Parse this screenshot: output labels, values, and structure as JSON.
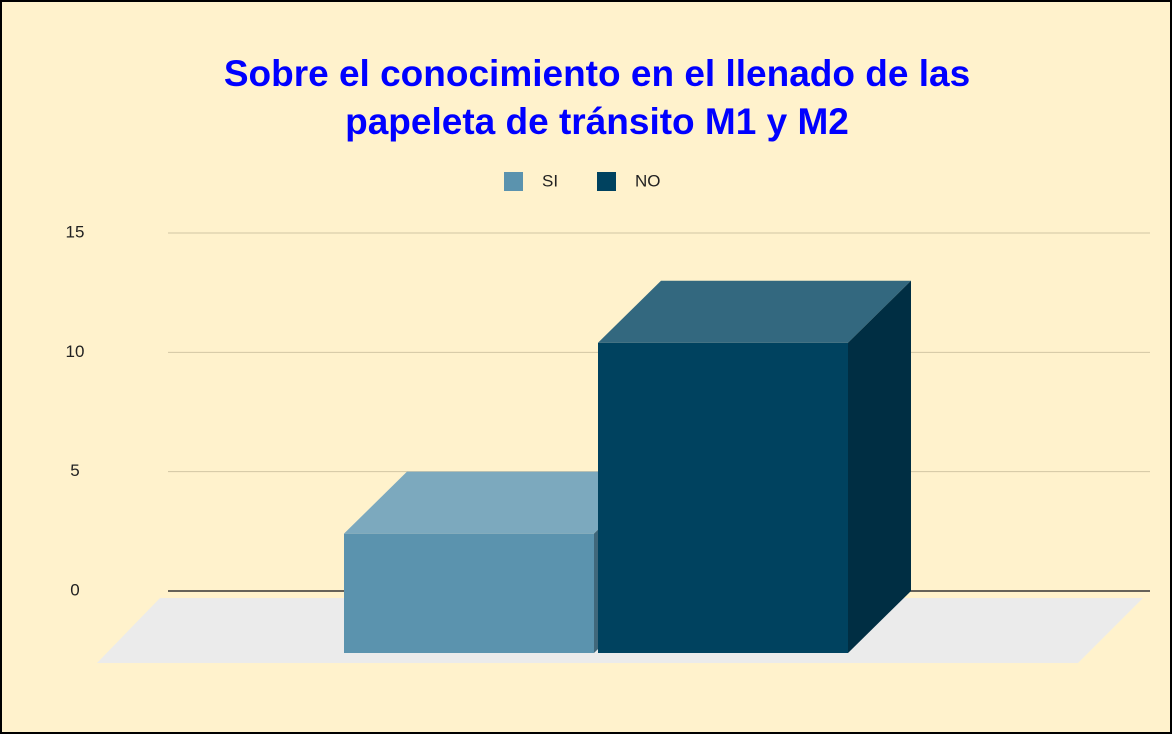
{
  "chart_data": {
    "type": "bar3d",
    "title": [
      "Sobre el conocimiento en el llenado de las",
      "papeleta de tránsito M1 y M2"
    ],
    "categories": [
      null
    ],
    "series": [
      {
        "name": "SI",
        "color": "#5b93ae",
        "values": [
          5
        ]
      },
      {
        "name": "NO",
        "color": "#00425f",
        "values": [
          13
        ]
      }
    ],
    "ylim": [
      0,
      15
    ],
    "yticks": [
      0,
      5,
      10,
      15
    ],
    "grid": true,
    "legend": "top"
  }
}
